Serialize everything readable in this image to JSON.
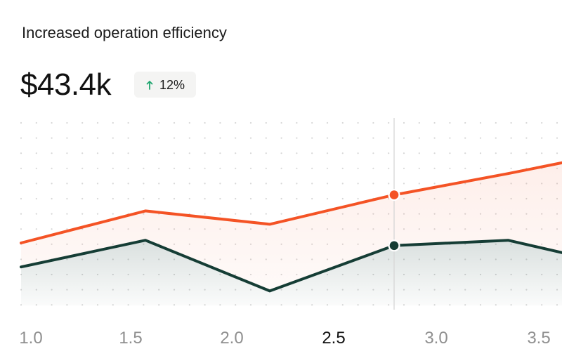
{
  "header": {
    "title": "Increased operation efficiency",
    "metric": "$43.4k",
    "change": "12%",
    "change_icon": "arrow-up-icon"
  },
  "colors": {
    "series_1": "#f45325",
    "series_2": "#153d35",
    "badge_arrow": "#1fa56f",
    "cursor": "#d8d8d8",
    "grid_dots": "#d7d7d7"
  },
  "chart_data": {
    "type": "area",
    "title": "",
    "xlabel": "",
    "ylabel": "",
    "x_ticks": [
      "1.0",
      "1.5",
      "2.0",
      "2.5",
      "3.0",
      "3.5"
    ],
    "active_tick": "2.5",
    "x": [
      1.0,
      1.6,
      2.2,
      2.8,
      3.35,
      3.8
    ],
    "series": [
      {
        "color": "#f45325",
        "values": [
          40,
          52,
          47,
          58,
          66,
          73
        ]
      },
      {
        "color": "#153d35",
        "values": [
          31,
          41,
          22,
          39,
          41,
          33
        ]
      }
    ],
    "highlight_x": 2.8,
    "grid": "dotted",
    "legend": "none"
  }
}
